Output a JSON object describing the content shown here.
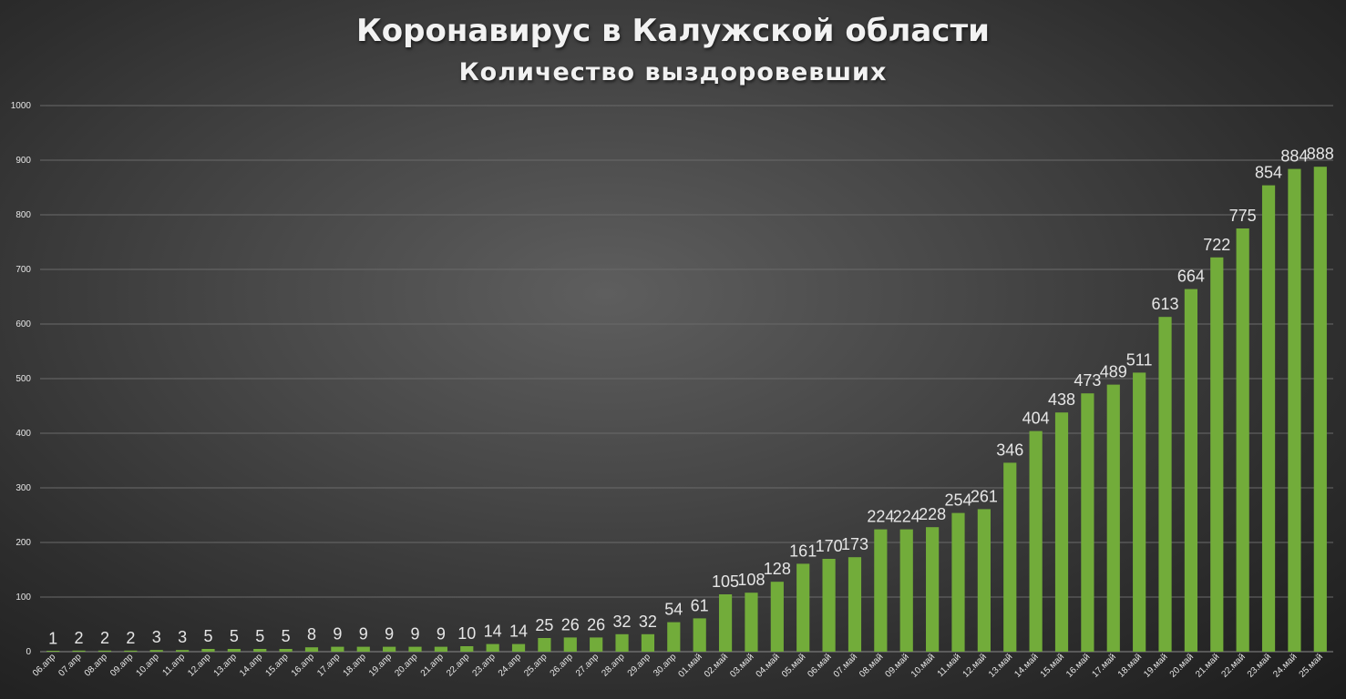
{
  "title": "Коронавирус в Калужской области",
  "subtitle": "Количество выздоровевших",
  "colors": {
    "bar": "#72ac3a",
    "grid": "#6a6a6a",
    "text": "#e6e6e6"
  },
  "chart_data": {
    "type": "bar",
    "title": "Коронавирус в Калужской области",
    "subtitle": "Количество выздоровевших",
    "xlabel": "",
    "ylabel": "",
    "ylim": [
      0,
      1000
    ],
    "yticks": [
      0,
      100,
      200,
      300,
      400,
      500,
      600,
      700,
      800,
      900,
      1000
    ],
    "grid": true,
    "categories": [
      "06.апр",
      "07.апр",
      "08.апр",
      "09.апр",
      "10.апр",
      "11.апр",
      "12.апр",
      "13.апр",
      "14.апр",
      "15.апр",
      "16.апр",
      "17.апр",
      "18.апр",
      "19.апр",
      "20.апр",
      "21.апр",
      "22.апр",
      "23.апр",
      "24.апр",
      "25.апр",
      "26.апр",
      "27.апр",
      "28.апр",
      "29.апр",
      "30.апр",
      "01.май",
      "02.май",
      "03.май",
      "04.май",
      "05.май",
      "06.май",
      "07.май",
      "08.май",
      "09.май",
      "10.май",
      "11.май",
      "12.май",
      "13.май",
      "14.май",
      "15.май",
      "16.май",
      "17.май",
      "18.май",
      "19.май",
      "20.май",
      "21.май",
      "22.май",
      "23.май",
      "24.май",
      "25.май"
    ],
    "values": [
      1,
      2,
      2,
      2,
      3,
      3,
      5,
      5,
      5,
      5,
      8,
      9,
      9,
      9,
      9,
      9,
      10,
      14,
      14,
      25,
      26,
      26,
      32,
      32,
      54,
      61,
      105,
      108,
      128,
      161,
      170,
      173,
      224,
      224,
      228,
      254,
      261,
      346,
      404,
      438,
      473,
      489,
      511,
      613,
      664,
      722,
      775,
      854,
      884,
      888
    ]
  }
}
